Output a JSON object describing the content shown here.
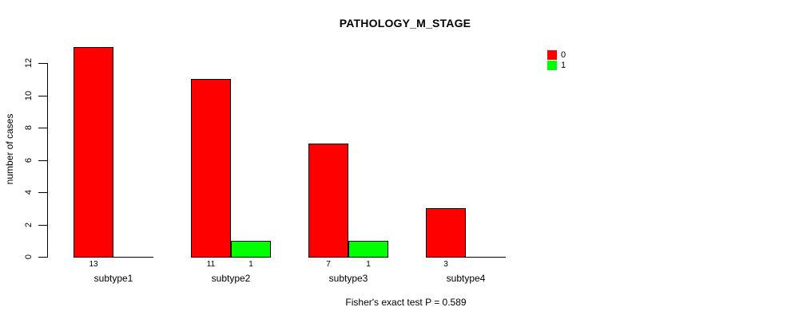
{
  "figure": {
    "title": "PATHOLOGY_M_STAGE",
    "footer": "Fisher's exact test P = 0.589"
  },
  "chart_data": {
    "type": "bar",
    "title": "PATHOLOGY_M_STAGE",
    "categories": [
      "subtype1",
      "subtype2",
      "subtype3",
      "subtype4"
    ],
    "series": [
      {
        "name": "0",
        "color": "#ff0000",
        "values": [
          13,
          11,
          7,
          3
        ]
      },
      {
        "name": "1",
        "color": "#00ff00",
        "values": [
          0,
          1,
          1,
          0
        ]
      }
    ],
    "xlabel": "",
    "ylabel": "number of cases",
    "ylim": [
      0,
      12
    ],
    "yticks": [
      0,
      2,
      4,
      6,
      8,
      10,
      12
    ],
    "grid": false,
    "legend_position": "top-right",
    "legend_entries": [
      "0",
      "1"
    ],
    "bar_value_labels": [
      [
        13,
        11,
        7,
        3
      ],
      [
        null,
        1,
        1,
        null
      ]
    ],
    "annotation": "Fisher's exact test P = 0.589"
  }
}
